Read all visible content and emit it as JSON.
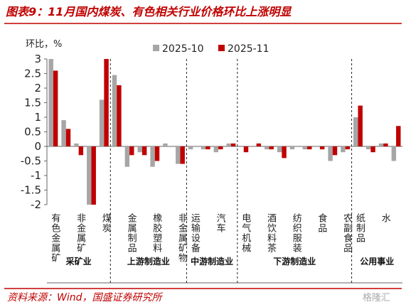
{
  "chart_data": {
    "type": "bar",
    "title": "图表9：11月国内煤炭、有色相关行业价格环比上涨明显",
    "y_label": "环比，%",
    "source": "资料来源：Wind，国盛证券研究所",
    "watermark": "格隆汇",
    "groups": [
      {
        "name": "采矿业",
        "categories": [
          "有色金属矿",
          null,
          "非金属矿",
          null,
          "煤炭"
        ]
      },
      {
        "name": "上游制造业",
        "categories": [
          null,
          "金属制品",
          null,
          "橡胶塑料",
          null,
          "非金属矿物"
        ]
      },
      {
        "name": "中游制造业",
        "categories": [
          "运输设备",
          null,
          "汽车",
          null
        ]
      },
      {
        "name": "下游制造业",
        "categories": [
          "电气机械",
          null,
          "酒饮料茶",
          null,
          "纺织服装",
          null,
          "食品",
          null,
          "农副食品"
        ]
      },
      {
        "name": "公用事业",
        "categories": [
          "纸制品",
          null,
          "水",
          null
        ]
      }
    ],
    "series": [
      {
        "name": "2025-10",
        "color": "#a6a6a6",
        "values": [
          3.0,
          0.9,
          0.1,
          -2.0,
          1.6,
          2.45,
          -0.7,
          -0.2,
          -0.7,
          0.1,
          -0.6,
          -0.1,
          -0.1,
          -0.2,
          0.1,
          0.0,
          0.0,
          -0.1,
          -0.2,
          -0.1,
          -0.1,
          0.0,
          -0.5,
          -0.2,
          1.0,
          -0.1,
          0.1,
          -0.5
        ]
      },
      {
        "name": "2025-11",
        "color": "#c00000",
        "values": [
          2.6,
          0.6,
          -0.3,
          -2.0,
          3.0,
          2.1,
          -0.3,
          -0.3,
          -0.5,
          0.0,
          -0.6,
          0.0,
          -0.1,
          -0.1,
          0.1,
          -0.2,
          0.1,
          -0.1,
          -0.4,
          0.0,
          -0.1,
          -0.1,
          -0.3,
          -0.1,
          1.4,
          -0.2,
          0.1,
          0.7
        ]
      }
    ],
    "ylim": [
      -2,
      3
    ],
    "yticks": [
      3,
      2.5,
      2,
      1.5,
      1,
      0.5,
      0,
      -0.5,
      -1,
      -1.5,
      -2
    ]
  }
}
